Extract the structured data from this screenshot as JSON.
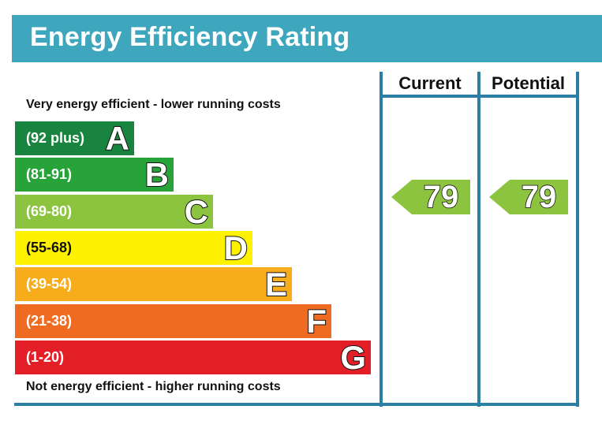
{
  "title": "Energy Efficiency Rating",
  "columns": {
    "current": "Current",
    "potential": "Potential"
  },
  "top_note": "Very energy efficient - lower running costs",
  "bottom_note": "Not energy efficient - higher running costs",
  "bands": [
    {
      "letter": "A",
      "range": "(92 plus)",
      "color": "#19843f"
    },
    {
      "letter": "B",
      "range": "(81-91)",
      "color": "#27a33a"
    },
    {
      "letter": "C",
      "range": "(69-80)",
      "color": "#8cc43f"
    },
    {
      "letter": "D",
      "range": "(55-68)",
      "color": "#fff200"
    },
    {
      "letter": "E",
      "range": "(39-54)",
      "color": "#f7ac1b"
    },
    {
      "letter": "F",
      "range": "(21-38)",
      "color": "#ef6b22"
    },
    {
      "letter": "G",
      "range": "(1-20)",
      "color": "#e21f26"
    }
  ],
  "current_rating": {
    "value": "79",
    "band": "C",
    "color": "#8cc43f"
  },
  "potential_rating": {
    "value": "79",
    "band": "C",
    "color": "#8cc43f"
  },
  "colors": {
    "title_bar": "#3fa7bd",
    "frame": "#2b7fa5"
  }
}
